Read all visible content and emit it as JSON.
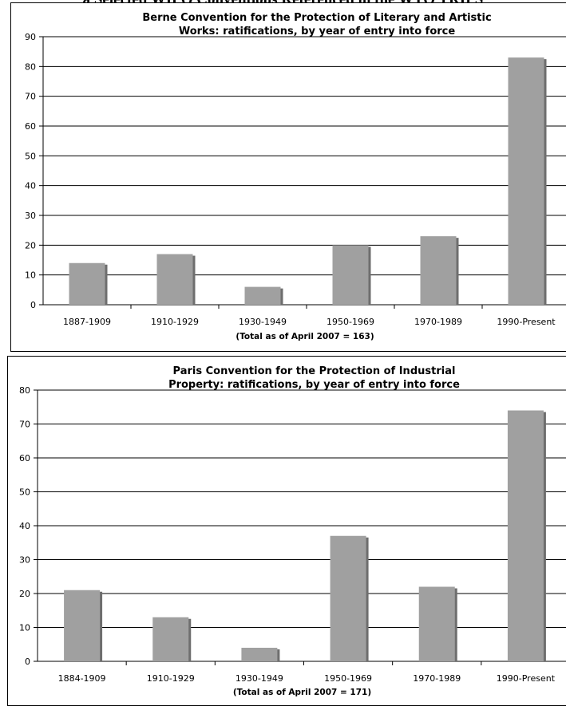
{
  "page": {
    "heading": "a  Selected WIPO Conventions Referenced in the WTO TRIPS"
  },
  "colors": {
    "bar": "#a0a0a0",
    "bar_shadow": "#6e6e6e",
    "gridline": "#000000",
    "text": "#000000"
  },
  "chart_data": [
    {
      "type": "bar",
      "title_lines": [
        "Berne Convention for the Protection of Literary and Artistic",
        "Works: ratifications, by year of entry into force"
      ],
      "categories": [
        "1887-1909",
        "1910-1929",
        "1930-1949",
        "1950-1969",
        "1970-1989",
        "1990-Present"
      ],
      "values": [
        14,
        17,
        6,
        20,
        23,
        83
      ],
      "xlabel": "(Total as of April 2007 = 163)",
      "ylabel": "",
      "ylim": [
        0,
        90
      ],
      "yticks": [
        0,
        10,
        20,
        30,
        40,
        50,
        60,
        70,
        80,
        90
      ],
      "grid": true,
      "legend": "none"
    },
    {
      "type": "bar",
      "title_lines": [
        "Paris Convention for the Protection of Industrial",
        "Property: ratifications, by year of entry into force"
      ],
      "categories": [
        "1884-1909",
        "1910-1929",
        "1930-1949",
        "1950-1969",
        "1970-1989",
        "1990-Present"
      ],
      "values": [
        21,
        13,
        4,
        37,
        22,
        74
      ],
      "xlabel": "(Total as of April 2007 = 171)",
      "ylabel": "",
      "ylim": [
        0,
        80
      ],
      "yticks": [
        0,
        10,
        20,
        30,
        40,
        50,
        60,
        70,
        80
      ],
      "grid": true,
      "legend": "none"
    }
  ]
}
